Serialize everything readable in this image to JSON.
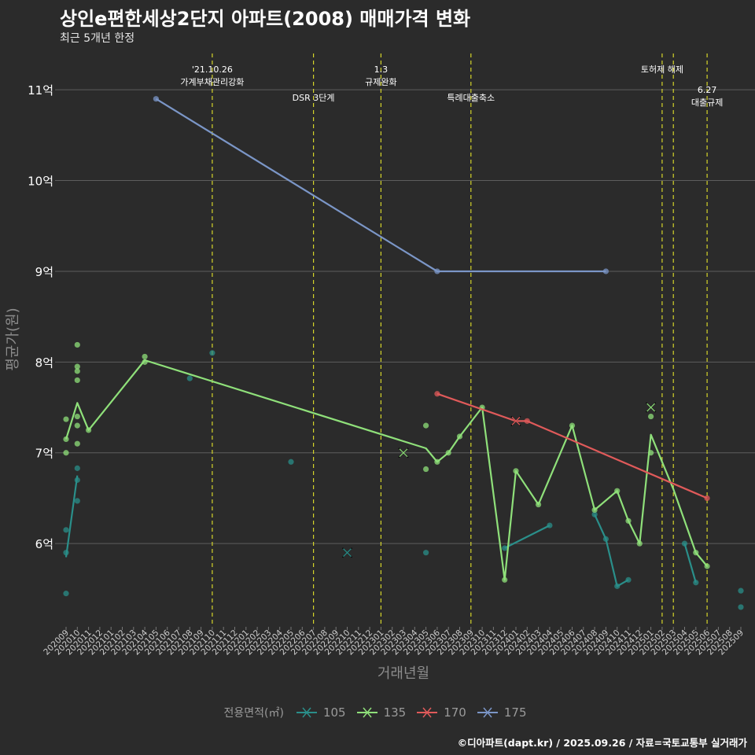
{
  "title": "상인e편한세상2단지 아파트(2008) 매매가격 변화",
  "subtitle": "최근 5개년 한정",
  "caption": "©디아파트(dapt.kr) / 2025.09.26 / 자료=국토교통부 실거래가",
  "chart_data": {
    "type": "line",
    "xlabel": "거래년월",
    "ylabel": "평균가(원)",
    "categories": [
      "202009",
      "202010",
      "202011",
      "202012",
      "202101",
      "202102",
      "202103",
      "202104",
      "202105",
      "202106",
      "202107",
      "202108",
      "202109",
      "202110",
      "202111",
      "202112",
      "202201",
      "202202",
      "202203",
      "202204",
      "202205",
      "202206",
      "202207",
      "202208",
      "202209",
      "202210",
      "202211",
      "202212",
      "202301",
      "202302",
      "202303",
      "202304",
      "202305",
      "202306",
      "202307",
      "202308",
      "202309",
      "202310",
      "202311",
      "202312",
      "202401",
      "202402",
      "202403",
      "202404",
      "202405",
      "202406",
      "202407",
      "202408",
      "202409",
      "202410",
      "202411",
      "202412",
      "202501",
      "202502",
      "202503",
      "202504",
      "202505",
      "202506",
      "202507",
      "202508",
      "202509"
    ],
    "ylim": [
      5.1,
      11.4
    ],
    "yticks": [
      {
        "value": 6,
        "label": "6억"
      },
      {
        "value": 7,
        "label": "7억"
      },
      {
        "value": 8,
        "label": "8억"
      },
      {
        "value": 9,
        "label": "9억"
      },
      {
        "value": 10,
        "label": "10억"
      },
      {
        "value": 11,
        "label": "11억"
      }
    ],
    "legend_title": "전용면적(㎡)",
    "series": [
      {
        "name": "105",
        "color": "#2a8f8a",
        "line": [
          [
            0,
            5.85
          ],
          [
            1,
            6.75
          ]
        ],
        "line2": [
          [
            39,
            5.95
          ],
          [
            43,
            6.2
          ]
        ],
        "line3": [
          [
            47,
            6.32
          ],
          [
            48,
            6.05
          ],
          [
            49,
            5.53
          ],
          [
            50,
            5.6
          ]
        ],
        "line4": [
          [
            55,
            6.0
          ],
          [
            56,
            5.57
          ]
        ],
        "points": [
          [
            0,
            5.9
          ],
          [
            0,
            6.15
          ],
          [
            0,
            5.45
          ],
          [
            1,
            6.83
          ],
          [
            1,
            6.7
          ],
          [
            1,
            6.47
          ],
          [
            11,
            7.82
          ],
          [
            13,
            8.1
          ],
          [
            20,
            6.9
          ],
          [
            32,
            5.9
          ],
          [
            39,
            5.95
          ],
          [
            43,
            6.2
          ],
          [
            47,
            6.32
          ],
          [
            48,
            6.05
          ],
          [
            49,
            5.53
          ],
          [
            50,
            5.6
          ],
          [
            55,
            6.0
          ],
          [
            56,
            5.57
          ],
          [
            60,
            5.48
          ],
          [
            60,
            5.3
          ]
        ],
        "crosses": [
          [
            25,
            5.9
          ]
        ]
      },
      {
        "name": "135",
        "color": "#8fe07a",
        "line": [
          [
            0,
            7.15
          ],
          [
            1,
            7.55
          ],
          [
            2,
            7.25
          ],
          [
            7,
            8.02
          ],
          [
            32,
            7.05
          ],
          [
            33,
            6.9
          ],
          [
            34,
            7.0
          ],
          [
            35,
            7.18
          ],
          [
            37,
            7.5
          ],
          [
            39,
            5.6
          ],
          [
            40,
            6.8
          ],
          [
            42,
            6.43
          ],
          [
            45,
            7.3
          ],
          [
            47,
            6.37
          ],
          [
            49,
            6.58
          ],
          [
            50,
            6.25
          ],
          [
            51,
            6.0
          ],
          [
            52,
            7.2
          ],
          [
            54,
            6.6
          ],
          [
            56,
            5.9
          ],
          [
            57,
            5.75
          ]
        ],
        "points": [
          [
            0,
            7.37
          ],
          [
            0,
            7.15
          ],
          [
            0,
            7.0
          ],
          [
            1,
            8.19
          ],
          [
            1,
            7.95
          ],
          [
            1,
            7.9
          ],
          [
            1,
            7.8
          ],
          [
            1,
            7.4
          ],
          [
            1,
            7.3
          ],
          [
            1,
            7.1
          ],
          [
            2,
            7.25
          ],
          [
            7,
            8.06
          ],
          [
            7,
            8.0
          ],
          [
            32,
            7.3
          ],
          [
            32,
            6.82
          ],
          [
            33,
            6.9
          ],
          [
            34,
            7.0
          ],
          [
            35,
            7.18
          ],
          [
            37,
            7.5
          ],
          [
            39,
            5.6
          ],
          [
            40,
            6.8
          ],
          [
            42,
            6.43
          ],
          [
            45,
            7.3
          ],
          [
            47,
            6.37
          ],
          [
            49,
            6.58
          ],
          [
            50,
            6.25
          ],
          [
            51,
            6.0
          ],
          [
            52,
            7.4
          ],
          [
            52,
            7.0
          ],
          [
            56,
            5.9
          ],
          [
            57,
            5.75
          ]
        ],
        "crosses": [
          [
            30,
            7.0
          ],
          [
            52,
            7.5
          ]
        ]
      },
      {
        "name": "170",
        "color": "#e05a5a",
        "line": [
          [
            33,
            7.65
          ],
          [
            40,
            7.35
          ],
          [
            41,
            7.35
          ],
          [
            57,
            6.5
          ]
        ],
        "points": [
          [
            33,
            7.65
          ],
          [
            41,
            7.35
          ],
          [
            57,
            6.5
          ]
        ],
        "crosses": [
          [
            40,
            7.35
          ]
        ]
      },
      {
        "name": "175",
        "color": "#7b96c7",
        "line": [
          [
            8,
            10.9
          ],
          [
            33,
            9.0
          ],
          [
            48,
            9.0
          ]
        ],
        "points": [
          [
            8,
            10.9
          ],
          [
            33,
            9.0
          ],
          [
            48,
            9.0
          ]
        ],
        "crosses": []
      }
    ],
    "events": [
      {
        "x": 13,
        "lines": [
          "'21.10.26",
          "가계부채관리강화"
        ],
        "row": 0
      },
      {
        "x": 22,
        "lines": [
          "DSR 3단계"
        ],
        "row": 1
      },
      {
        "x": 28,
        "lines": [
          "1.3",
          "규제완화"
        ],
        "row": 0
      },
      {
        "x": 36,
        "lines": [
          "특례대출축소"
        ],
        "row": 1
      },
      {
        "x": 53,
        "lines": [
          "토허제 해제"
        ],
        "row": 0,
        "labelOffset": 0
      },
      {
        "x": 54,
        "lines": [],
        "row": 0
      },
      {
        "x": 57,
        "lines": [
          "6.27",
          "대출규제"
        ],
        "row": 2
      }
    ]
  }
}
